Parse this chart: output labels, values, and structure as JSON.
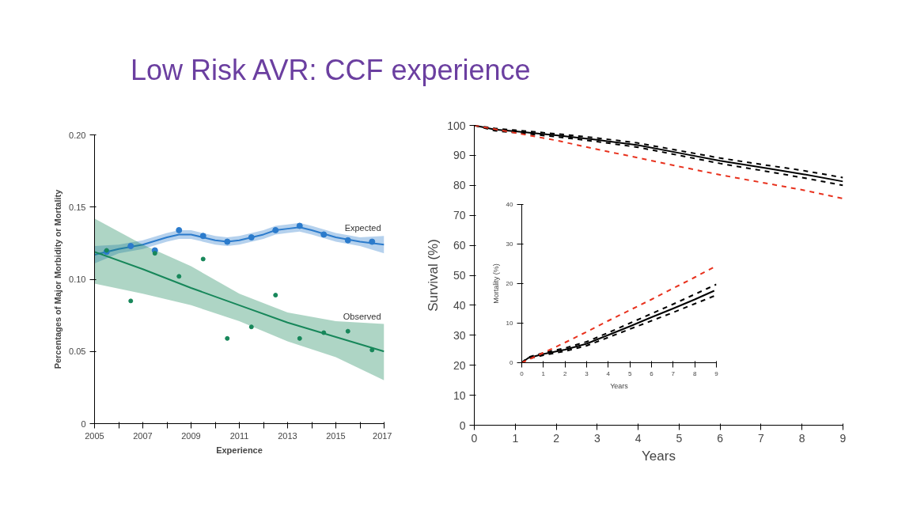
{
  "chart_data": [
    {
      "type": "line",
      "title": "Low Risk AVR: CCF experience",
      "xlabel": "Experience",
      "ylabel": "Percentages of Major Morbidity or Mortality",
      "xlim": [
        2005,
        2017
      ],
      "xticks": [
        2005,
        {
          "value": 2006,
          "label": null
        },
        2007,
        {
          "value": 2008,
          "label": null
        },
        2009,
        {
          "value": 2010,
          "label": null
        },
        2011,
        {
          "value": 2012,
          "label": null
        },
        2013,
        {
          "value": 2014,
          "label": null
        },
        2015,
        {
          "value": 2016,
          "label": null
        },
        2017
      ],
      "ylim": [
        0,
        0.2
      ],
      "yticks": [
        0,
        0.05,
        {
          "value": 0.1,
          "label": "0.10"
        },
        0.15,
        {
          "value": 0.2,
          "label": "0.20"
        }
      ],
      "grid": false,
      "series": [
        {
          "name": "Expected",
          "type": "line",
          "color": "#2b7bcc",
          "x": [
            2005,
            2006,
            2007,
            2008,
            2008.5,
            2009,
            2010,
            2010.5,
            2011,
            2012,
            2012.5,
            2013,
            2013.5,
            2014,
            2015,
            2016,
            2017
          ],
          "values": [
            0.117,
            0.121,
            0.124,
            0.129,
            0.131,
            0.131,
            0.127,
            0.126,
            0.127,
            0.131,
            0.134,
            0.135,
            0.136,
            0.134,
            0.129,
            0.126,
            0.124
          ],
          "lower": [
            0.111,
            0.118,
            0.121,
            0.126,
            0.128,
            0.128,
            0.124,
            0.123,
            0.124,
            0.128,
            0.131,
            0.132,
            0.133,
            0.131,
            0.126,
            0.123,
            0.118
          ],
          "upper": [
            0.123,
            0.124,
            0.127,
            0.132,
            0.134,
            0.134,
            0.13,
            0.129,
            0.13,
            0.134,
            0.137,
            0.138,
            0.139,
            0.137,
            0.132,
            0.129,
            0.13
          ]
        },
        {
          "name": "Observed",
          "type": "line",
          "color": "#17875a",
          "x": [
            2005,
            2007,
            2009,
            2011,
            2013,
            2015,
            2017
          ],
          "values": [
            0.119,
            0.107,
            0.094,
            0.082,
            0.07,
            0.06,
            0.05
          ],
          "lower": [
            0.097,
            0.09,
            0.082,
            0.071,
            0.057,
            0.046,
            0.03
          ],
          "upper": [
            0.142,
            0.124,
            0.109,
            0.09,
            0.077,
            0.071,
            0.069
          ]
        },
        {
          "type": "scatter",
          "color": "#2b7bcc",
          "marker": "circle",
          "x": [
            2005.5,
            2006.5,
            2007.5,
            2008.5,
            2009.5,
            2010.5,
            2011.5,
            2012.5,
            2013.5,
            2014.5,
            2015.5,
            2016.5
          ],
          "values": [
            0.119,
            0.123,
            0.12,
            0.134,
            0.13,
            0.126,
            0.129,
            0.134,
            0.137,
            0.131,
            0.127,
            0.126
          ]
        },
        {
          "type": "scatter",
          "color": "#17875a",
          "marker": "circle",
          "x": [
            2005.5,
            2006.5,
            2007.5,
            2008.5,
            2009.5,
            2010.5,
            2011.5,
            2012.5,
            2013.5,
            2014.5,
            2015.5,
            2016.5
          ],
          "values": [
            0.12,
            0.085,
            0.118,
            0.102,
            0.114,
            0.059,
            0.067,
            0.089,
            0.059,
            0.063,
            0.064,
            0.051
          ]
        }
      ]
    },
    {
      "type": "line",
      "xlabel": "Years",
      "ylabel": "Survival (%)",
      "xlim": [
        0,
        9
      ],
      "xticks": [
        0,
        1,
        2,
        3,
        4,
        5,
        6,
        7,
        8,
        9
      ],
      "ylim": [
        0,
        100
      ],
      "yticks": [
        0,
        10,
        20,
        30,
        40,
        50,
        60,
        70,
        80,
        90,
        100
      ],
      "grid": false,
      "series": [
        {
          "color": "#000000",
          "line_style": "solid",
          "x": [
            0,
            0.5,
            1,
            2,
            3,
            4,
            5,
            6,
            7,
            8,
            9
          ],
          "values": [
            100,
            98.6,
            98,
            96.7,
            95.2,
            93.4,
            90.8,
            88.2,
            86,
            83.8,
            81.3
          ]
        },
        {
          "color": "#000000",
          "line_style": "dashed",
          "x": [
            0,
            0.5,
            1,
            2,
            3,
            4,
            5,
            6,
            7,
            8,
            9
          ],
          "values": [
            100,
            99,
            98.4,
            97.2,
            95.8,
            94.1,
            91.6,
            89.1,
            87,
            85,
            82.6
          ]
        },
        {
          "color": "#000000",
          "line_style": "dashed",
          "x": [
            0,
            0.5,
            1,
            2,
            3,
            4,
            5,
            6,
            7,
            8,
            9
          ],
          "values": [
            100,
            98.2,
            97.6,
            96.2,
            94.6,
            92.7,
            90,
            87.3,
            85,
            82.6,
            80
          ]
        },
        {
          "color": "#e8321e",
          "line_style": "dashed",
          "x": [
            0,
            1,
            2,
            3,
            4,
            5,
            6,
            7,
            8,
            9
          ],
          "values": [
            100,
            97.5,
            95,
            92,
            89.2,
            86.3,
            83.5,
            81,
            78.5,
            75.6
          ]
        }
      ]
    },
    {
      "type": "line",
      "xlabel": "Years",
      "ylabel": "Mortality (%)",
      "xlim": [
        0,
        9
      ],
      "xticks": [
        0,
        1,
        2,
        3,
        4,
        5,
        6,
        7,
        8,
        9
      ],
      "ylim": [
        0,
        40
      ],
      "yticks": [
        0,
        10,
        20,
        30,
        40
      ],
      "grid": false,
      "series": [
        {
          "color": "#000000",
          "line_style": "solid",
          "x": [
            0,
            0.3,
            1,
            2,
            3,
            4,
            5,
            6,
            7,
            8,
            8.9
          ],
          "values": [
            0,
            1.2,
            2.2,
            3.3,
            4.8,
            7,
            9.2,
            11.5,
            13.7,
            16,
            18.2
          ]
        },
        {
          "color": "#000000",
          "line_style": "dashed",
          "x": [
            0,
            0.3,
            1,
            2,
            3,
            4,
            5,
            6,
            7,
            8,
            9
          ],
          "values": [
            0,
            1.4,
            2.5,
            3.7,
            5.3,
            7.6,
            10,
            12.4,
            14.8,
            17.3,
            19.8
          ]
        },
        {
          "color": "#000000",
          "line_style": "dashed",
          "x": [
            0,
            0.3,
            1,
            2,
            3,
            4,
            5,
            6,
            7,
            8,
            9
          ],
          "values": [
            0,
            1,
            1.9,
            2.9,
            4.3,
            6.4,
            8.5,
            10.6,
            12.7,
            14.9,
            17.1
          ]
        },
        {
          "color": "#e8321e",
          "line_style": "dashed",
          "x": [
            0,
            1,
            2,
            3,
            4,
            5,
            6,
            7,
            8,
            9
          ],
          "values": [
            0,
            2.5,
            5.1,
            7.8,
            10.6,
            13.3,
            16,
            18.8,
            21.6,
            24.5
          ]
        }
      ]
    }
  ]
}
